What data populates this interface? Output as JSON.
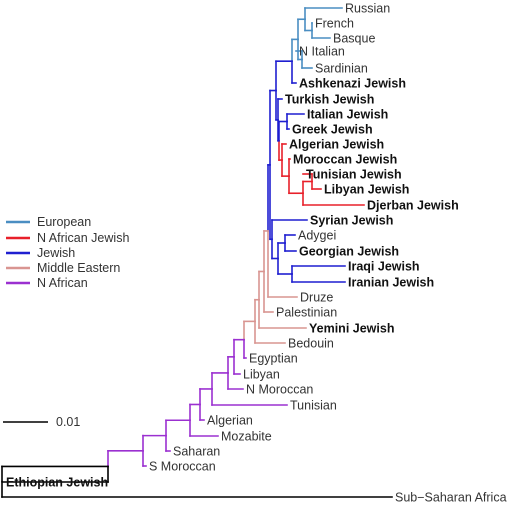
{
  "legend": {
    "items": [
      {
        "label": "European",
        "color": "#4a8ec2"
      },
      {
        "label": "N African Jewish",
        "color": "#e8202a"
      },
      {
        "label": "Jewish",
        "color": "#1f1fd0"
      },
      {
        "label": "Middle Eastern",
        "color": "#d99591"
      },
      {
        "label": "N African",
        "color": "#9b30d0"
      }
    ]
  },
  "scale_bar": {
    "label": "0.01"
  },
  "other_color": "#000000",
  "leaves": [
    {
      "id": "russian",
      "label": "Russian",
      "group": "European",
      "bold": false
    },
    {
      "id": "french",
      "label": "French",
      "group": "European",
      "bold": false
    },
    {
      "id": "basque",
      "label": "Basque",
      "group": "European",
      "bold": false
    },
    {
      "id": "n-italian",
      "label": "N Italian",
      "group": "European",
      "bold": false
    },
    {
      "id": "sardinian",
      "label": "Sardinian",
      "group": "European",
      "bold": false
    },
    {
      "id": "ashkenazi-jewish",
      "label": "Ashkenazi Jewish",
      "group": "Jewish",
      "bold": true
    },
    {
      "id": "turkish-jewish",
      "label": "Turkish Jewish",
      "group": "Jewish",
      "bold": true
    },
    {
      "id": "italian-jewish",
      "label": "Italian Jewish",
      "group": "Jewish",
      "bold": true
    },
    {
      "id": "greek-jewish",
      "label": "Greek Jewish",
      "group": "Jewish",
      "bold": true
    },
    {
      "id": "algerian-jewish",
      "label": "Algerian Jewish",
      "group": "N African Jewish",
      "bold": true
    },
    {
      "id": "moroccan-jewish",
      "label": "Moroccan Jewish",
      "group": "N African Jewish",
      "bold": true
    },
    {
      "id": "tunisian-jewish",
      "label": "Tunisian Jewish",
      "group": "N African Jewish",
      "bold": true
    },
    {
      "id": "libyan-jewish",
      "label": "Libyan Jewish",
      "group": "N African Jewish",
      "bold": true
    },
    {
      "id": "djerban-jewish",
      "label": "Djerban Jewish",
      "group": "N African Jewish",
      "bold": true
    },
    {
      "id": "syrian-jewish",
      "label": "Syrian Jewish",
      "group": "Jewish",
      "bold": true
    },
    {
      "id": "adygei",
      "label": "Adygei",
      "group": "Jewish",
      "bold": false
    },
    {
      "id": "georgian-jewish",
      "label": "Georgian Jewish",
      "group": "Jewish",
      "bold": true
    },
    {
      "id": "iraqi-jewish",
      "label": "Iraqi Jewish",
      "group": "Jewish",
      "bold": true
    },
    {
      "id": "iranian-jewish",
      "label": "Iranian Jewish",
      "group": "Jewish",
      "bold": true
    },
    {
      "id": "druze",
      "label": "Druze",
      "group": "Middle Eastern",
      "bold": false
    },
    {
      "id": "palestinian",
      "label": "Palestinian",
      "group": "Middle Eastern",
      "bold": false
    },
    {
      "id": "yemini-jewish",
      "label": "Yemini Jewish",
      "group": "Middle Eastern",
      "bold": true
    },
    {
      "id": "bedouin",
      "label": "Bedouin",
      "group": "Middle Eastern",
      "bold": false
    },
    {
      "id": "egyptian",
      "label": "Egyptian",
      "group": "N African",
      "bold": false
    },
    {
      "id": "libyan",
      "label": "Libyan",
      "group": "N African",
      "bold": false
    },
    {
      "id": "n-moroccan",
      "label": "N Moroccan",
      "group": "N African",
      "bold": false
    },
    {
      "id": "tunisian",
      "label": "Tunisian",
      "group": "N African",
      "bold": false
    },
    {
      "id": "algerian",
      "label": "Algerian",
      "group": "N African",
      "bold": false
    },
    {
      "id": "mozabite",
      "label": "Mozabite",
      "group": "N African",
      "bold": false
    },
    {
      "id": "saharan",
      "label": "Saharan",
      "group": "N African",
      "bold": false
    },
    {
      "id": "s-moroccan",
      "label": "S Moroccan",
      "group": "N African",
      "bold": false
    },
    {
      "id": "ethiopian-jewish",
      "label": "Ethiopian Jewish",
      "group": "Other",
      "bold": true
    },
    {
      "id": "sub-saharan-africa",
      "label": "Sub−Saharan Africa",
      "group": "Other",
      "bold": false
    }
  ]
}
